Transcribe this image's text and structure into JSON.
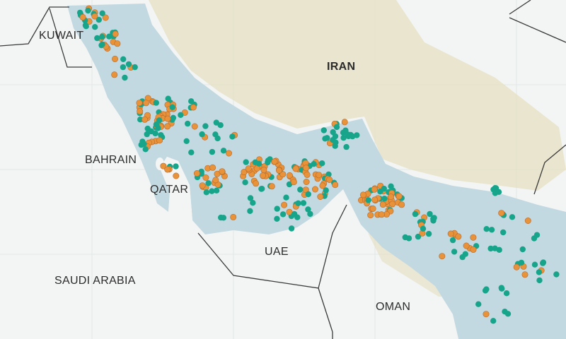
{
  "map": {
    "labels": {
      "kuwait": "KUWAIT",
      "iran": "IRAN",
      "bahrain": "BAHRAIN",
      "qatar": "QATAR",
      "uae": "UAE",
      "saudi_arabia": "SAUDI ARABIA",
      "oman": "OMAN"
    },
    "colors": {
      "land": "#f3f5f4",
      "water": "#c3d9e1",
      "terrain": "#e6e1c6",
      "border": "#3a3a3a",
      "marker_teal": "#16a58a",
      "marker_orange": "#e8923a"
    },
    "marker_categories": [
      "teal",
      "orange"
    ]
  }
}
